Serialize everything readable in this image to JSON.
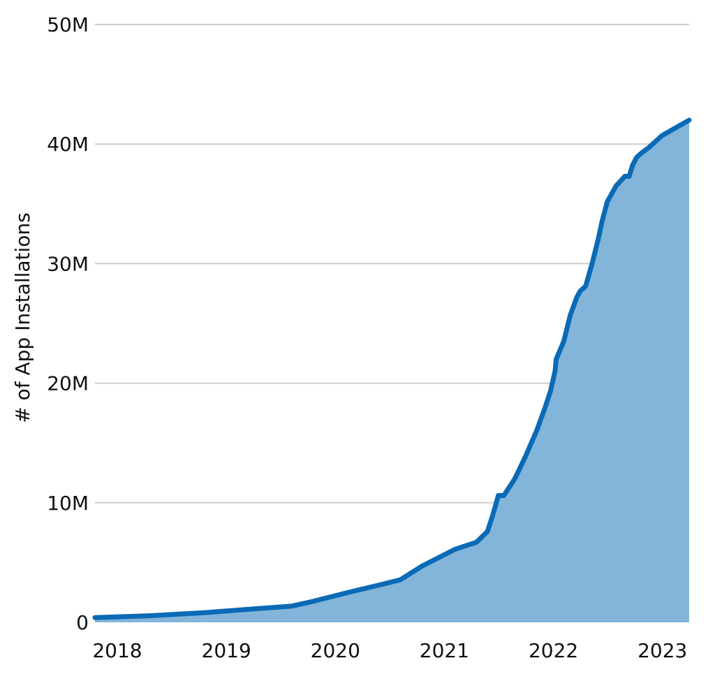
{
  "chart_data": {
    "type": "area",
    "title": "",
    "xlabel": "",
    "ylabel": "# of App Installations",
    "grid": true,
    "x_tick_labels": [
      "2018",
      "2019",
      "2020",
      "2021",
      "2022",
      "2023"
    ],
    "x_tick_values": [
      2018,
      2019,
      2020,
      2021,
      2022,
      2023
    ],
    "y_tick_labels": [
      "0",
      "10M",
      "20M",
      "30M",
      "40M",
      "50M"
    ],
    "y_tick_values": [
      0,
      10000000,
      20000000,
      30000000,
      40000000,
      50000000
    ],
    "xlim": [
      2018.0,
      2023.45
    ],
    "ylim": [
      0,
      50000000
    ],
    "colors": {
      "line": "#0a6ab6",
      "fill": "#82b5d9",
      "grid": "#cccccc"
    },
    "series": [
      {
        "x": [
          2018.0,
          2018.5,
          2019.0,
          2019.5,
          2019.8,
          2020.0,
          2020.3,
          2020.6,
          2020.8,
          2021.0,
          2021.3,
          2021.5,
          2021.6,
          2021.65,
          2021.7,
          2021.75,
          2021.85,
          2021.95,
          2022.05,
          2022.13,
          2022.18,
          2022.22,
          2022.23,
          2022.3,
          2022.36,
          2022.42,
          2022.45,
          2022.5,
          2022.56,
          2022.62,
          2022.65,
          2022.7,
          2022.78,
          2022.86,
          2022.9,
          2022.93,
          2022.97,
          2023.02,
          2023.08,
          2023.2,
          2023.45
        ],
        "y": [
          400000,
          550000,
          800000,
          1150000,
          1350000,
          1750000,
          2450000,
          3100000,
          3550000,
          4700000,
          6100000,
          6700000,
          7600000,
          9000000,
          10600000,
          10600000,
          12000000,
          13900000,
          16000000,
          18000000,
          19400000,
          21000000,
          22000000,
          23500000,
          25700000,
          27200000,
          27700000,
          28100000,
          30000000,
          32200000,
          33500000,
          35200000,
          36500000,
          37300000,
          37300000,
          38200000,
          38900000,
          39300000,
          39700000,
          40700000,
          42000000
        ]
      }
    ]
  }
}
